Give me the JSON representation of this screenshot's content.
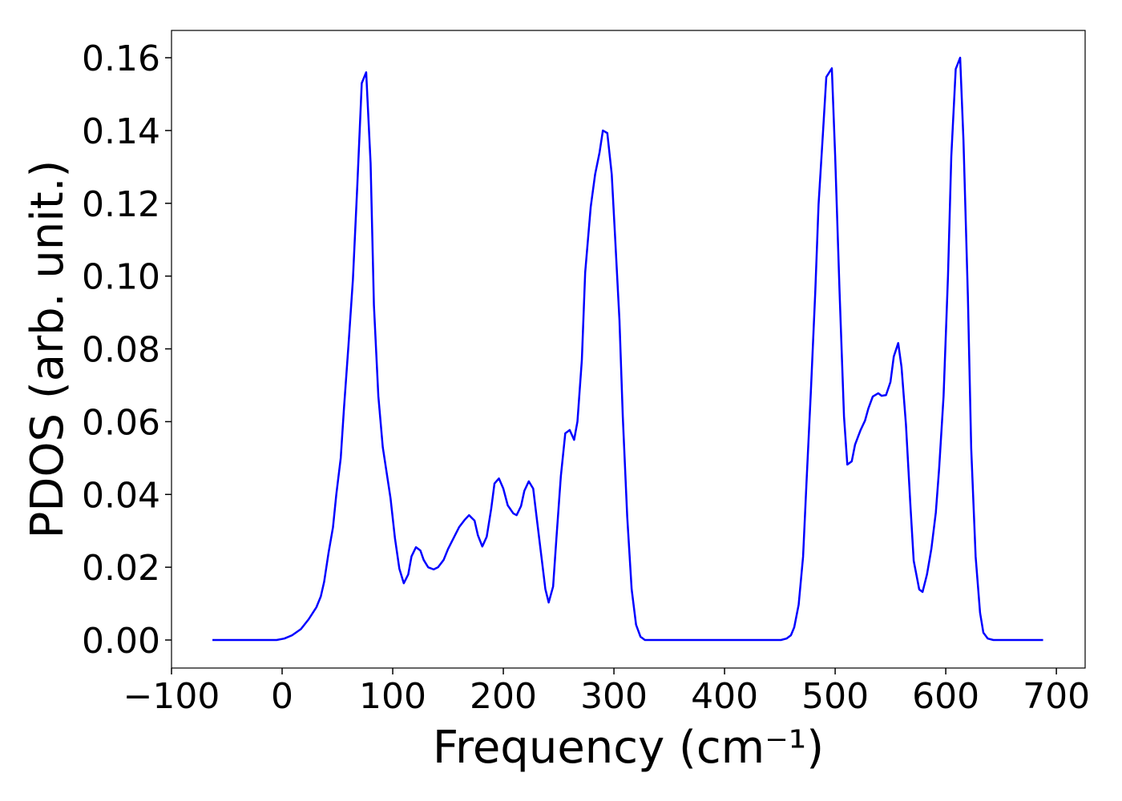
{
  "chart_data": {
    "type": "line",
    "x_label": "Frequency (cm⁻¹)",
    "y_label": "PDOS (arb. unit.)",
    "color": "#0000ff",
    "xlim": [
      -100,
      726
    ],
    "ylim": [
      -0.0077,
      0.1675
    ],
    "xticks": [
      {
        "value": -100,
        "label": "−100"
      },
      0,
      100,
      200,
      300,
      400,
      500,
      600,
      700
    ],
    "yticks": [
      {
        "value": 0,
        "label": "0.00"
      },
      {
        "value": 0.02,
        "label": "0.02"
      },
      {
        "value": 0.04,
        "label": "0.04"
      },
      {
        "value": 0.06,
        "label": "0.06"
      },
      {
        "value": 0.08,
        "label": "0.08"
      },
      {
        "value": 0.1,
        "label": "0.10"
      },
      {
        "value": 0.12,
        "label": "0.12"
      },
      {
        "value": 0.14,
        "label": "0.14"
      },
      {
        "value": 0.16,
        "label": "0.16"
      }
    ],
    "grid": false,
    "x": [
      -63,
      -5,
      2,
      9,
      17,
      24,
      31,
      35,
      38,
      42,
      46,
      49,
      53,
      56,
      60,
      64,
      68,
      72,
      76,
      80,
      83,
      87,
      91,
      98,
      102,
      106,
      110,
      114,
      117,
      121,
      125,
      128,
      132,
      137,
      141,
      146,
      150,
      155,
      160,
      165,
      169,
      174,
      177,
      181,
      185,
      189,
      192,
      196,
      200,
      204,
      209,
      212,
      216,
      219,
      223,
      227,
      230,
      234,
      238,
      241,
      245,
      248,
      252,
      256,
      260,
      264,
      267,
      271,
      274,
      279,
      283,
      287,
      290,
      294,
      298,
      301,
      305,
      308,
      312,
      316,
      320,
      324,
      328,
      451,
      456,
      460,
      463,
      467,
      471,
      474,
      478,
      482,
      485,
      489,
      492,
      497,
      500,
      504,
      508,
      511,
      515,
      518,
      523,
      527,
      530,
      534,
      539,
      542,
      546,
      550,
      553,
      557,
      560,
      564,
      568,
      571,
      576,
      579,
      583,
      587,
      591,
      594,
      598,
      602,
      605,
      609,
      613,
      616,
      620,
      623,
      627,
      631,
      634,
      638,
      643,
      688
    ],
    "values": [
      0,
      0,
      0.0004,
      0.0013,
      0.003,
      0.0057,
      0.009,
      0.012,
      0.016,
      0.024,
      0.031,
      0.04,
      0.05,
      0.064,
      0.081,
      0.099,
      0.125,
      0.153,
      0.156,
      0.131,
      0.092,
      0.067,
      0.053,
      0.039,
      0.028,
      0.0196,
      0.0156,
      0.018,
      0.023,
      0.0255,
      0.0246,
      0.022,
      0.02,
      0.0194,
      0.02,
      0.022,
      0.025,
      0.028,
      0.031,
      0.033,
      0.0343,
      0.0328,
      0.0288,
      0.0257,
      0.0284,
      0.036,
      0.043,
      0.0444,
      0.0416,
      0.037,
      0.0348,
      0.0343,
      0.0368,
      0.041,
      0.0436,
      0.0416,
      0.034,
      0.024,
      0.014,
      0.0103,
      0.0147,
      0.028,
      0.045,
      0.0568,
      0.0577,
      0.055,
      0.06,
      0.077,
      0.101,
      0.119,
      0.128,
      0.134,
      0.14,
      0.1393,
      0.128,
      0.111,
      0.0878,
      0.0614,
      0.0339,
      0.014,
      0.0042,
      0.0009,
      0,
      0,
      0.0004,
      0.0013,
      0.0035,
      0.0097,
      0.0229,
      0.0427,
      0.068,
      0.0955,
      0.1197,
      0.1395,
      0.1547,
      0.1571,
      0.133,
      0.0955,
      0.0614,
      0.0482,
      0.0491,
      0.0537,
      0.0577,
      0.0603,
      0.0636,
      0.0669,
      0.0678,
      0.0671,
      0.0673,
      0.0709,
      0.0779,
      0.0816,
      0.075,
      0.0592,
      0.0372,
      0.0218,
      0.0139,
      0.0132,
      0.018,
      0.0251,
      0.035,
      0.0471,
      0.0669,
      0.0999,
      0.1329,
      0.1569,
      0.16,
      0.1373,
      0.0944,
      0.0526,
      0.0229,
      0.0075,
      0.002,
      0.0004,
      0,
      0
    ]
  }
}
